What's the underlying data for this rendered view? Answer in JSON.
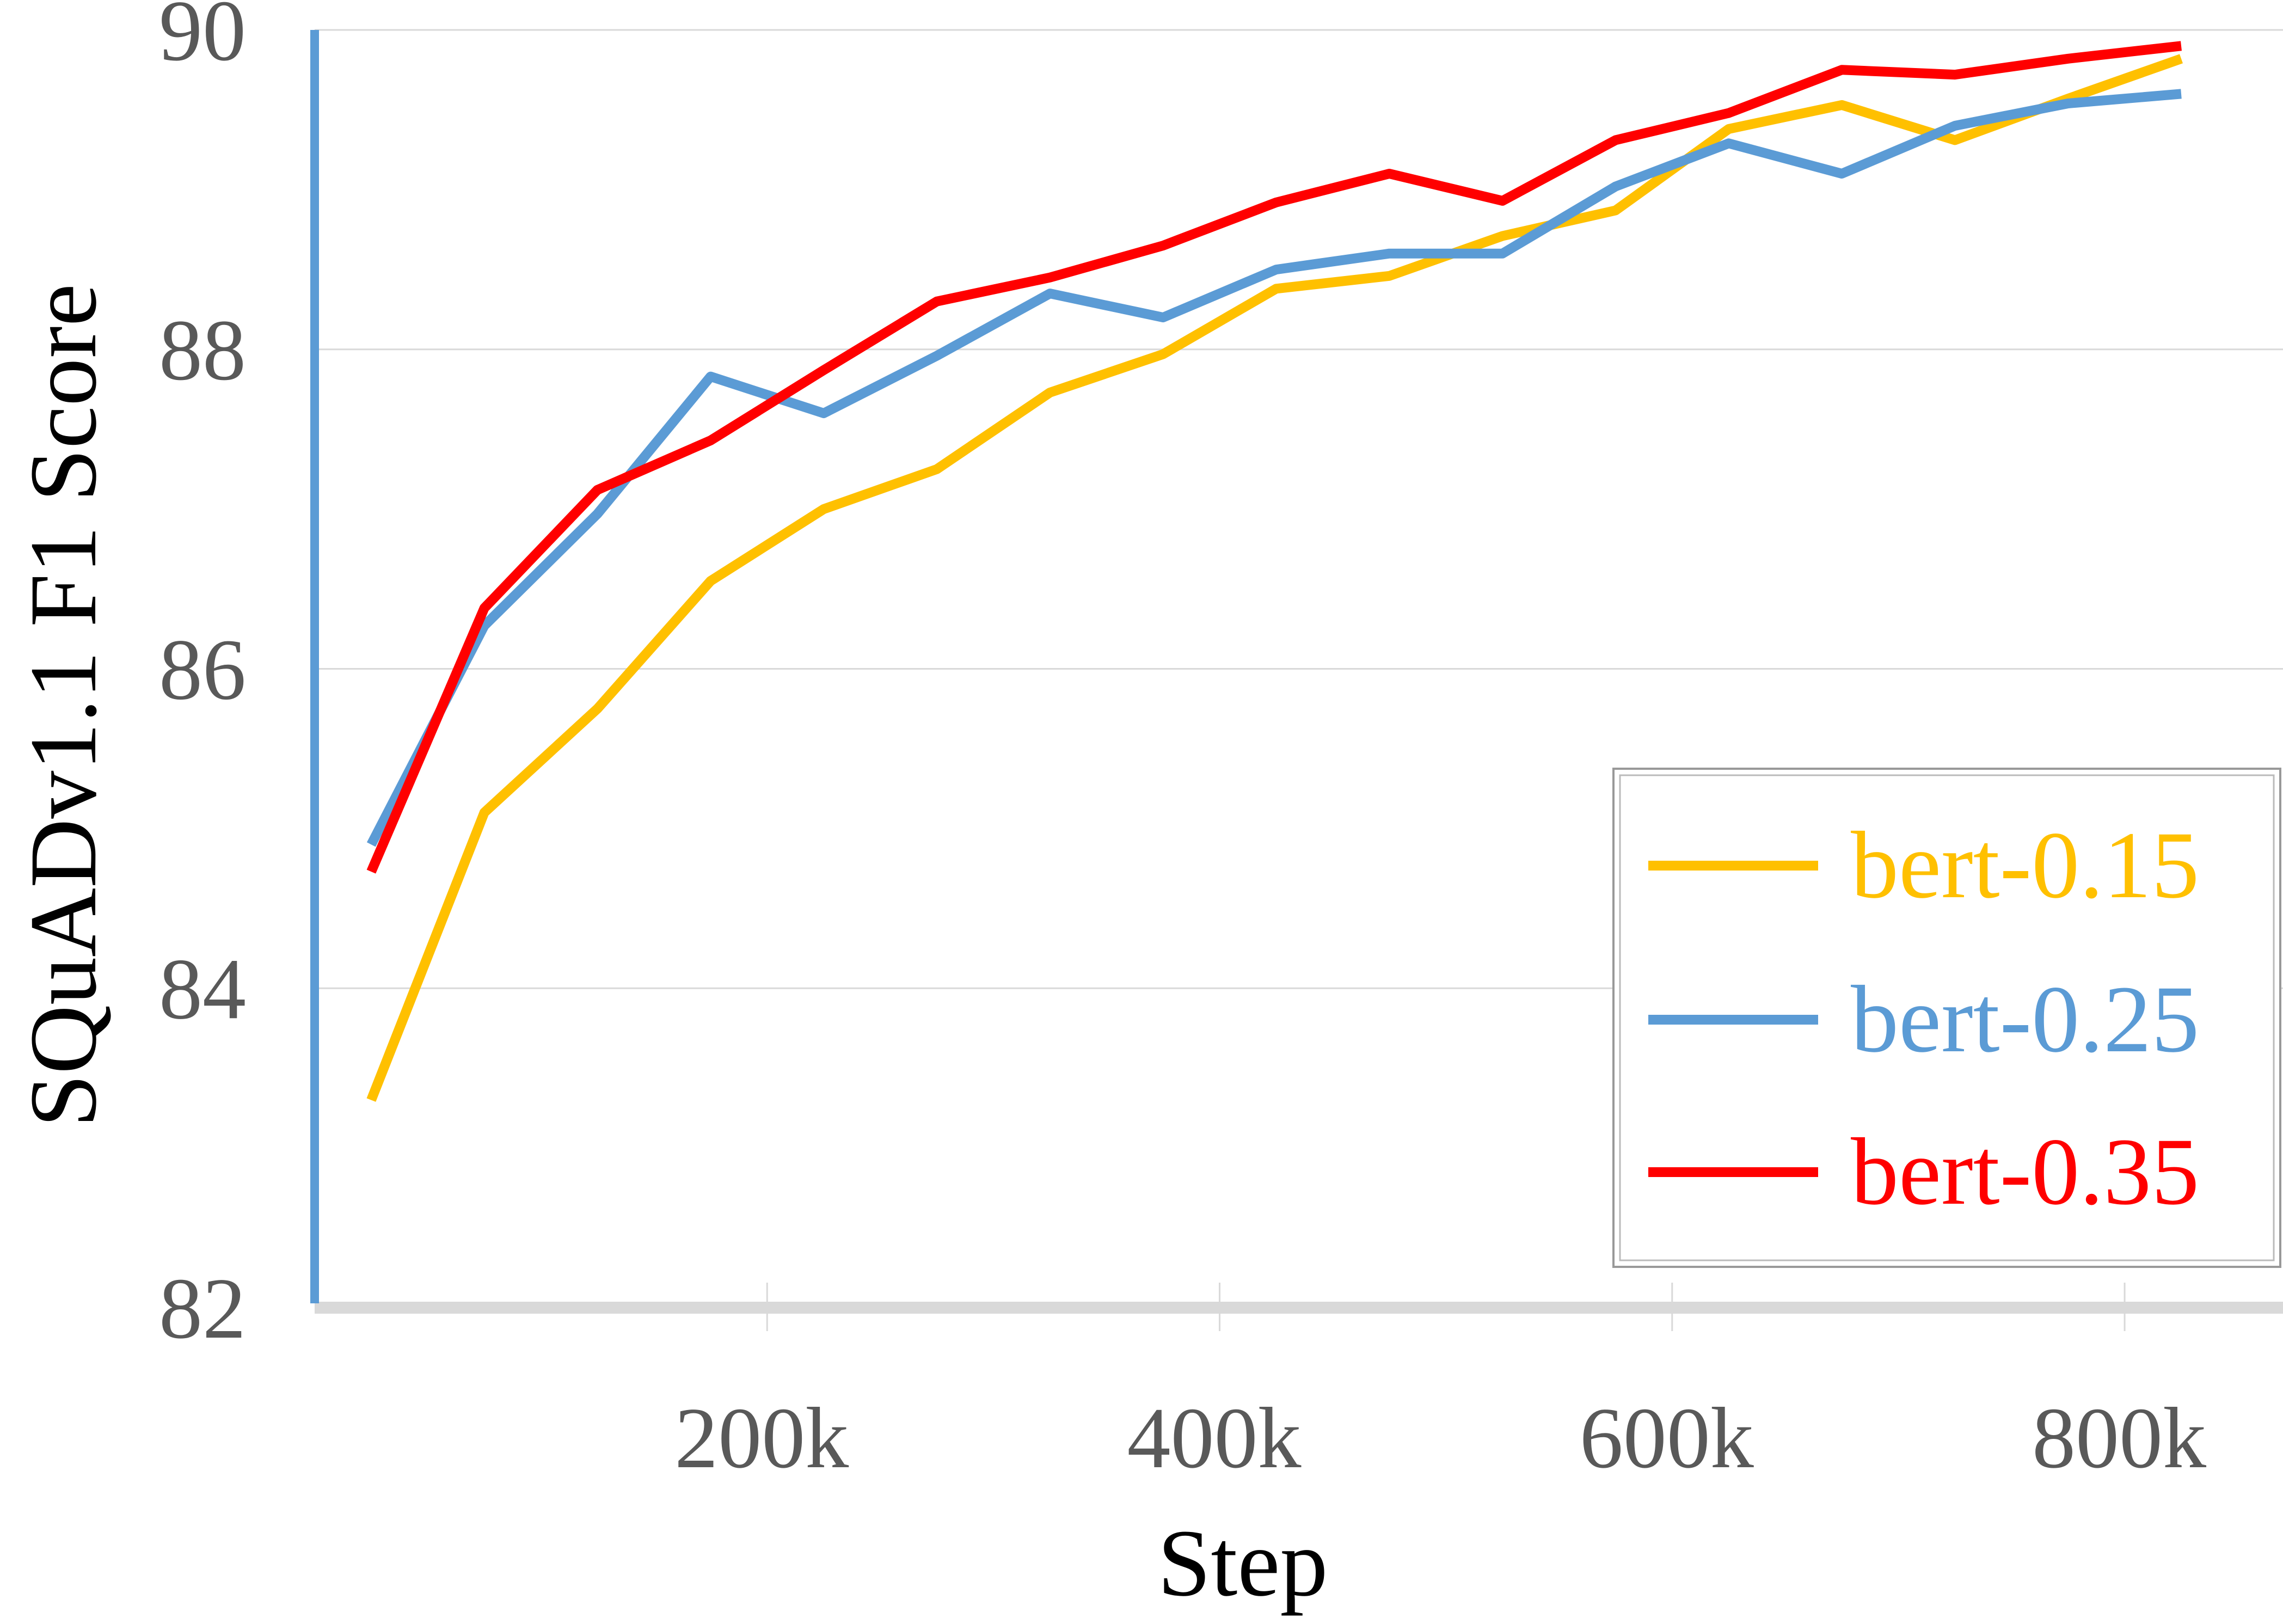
{
  "chart_data": {
    "type": "line",
    "title": "",
    "xlabel": "Step",
    "ylabel": "SQuADv1.1 F1 Score",
    "xlim": [
      0,
      870000
    ],
    "ylim": [
      82,
      90
    ],
    "x_ticks": [
      200000,
      400000,
      600000,
      800000
    ],
    "x_tick_labels": [
      "200k",
      "400k",
      "600k",
      "800k"
    ],
    "y_ticks": [
      82,
      84,
      86,
      88,
      90
    ],
    "y_tick_labels": [
      "82",
      "84",
      "86",
      "88",
      "90"
    ],
    "grid": "horizontal",
    "legend_position": "lower-right",
    "x": [
      25000,
      75000,
      125000,
      175000,
      225000,
      275000,
      325000,
      375000,
      425000,
      475000,
      525000,
      575000,
      625000,
      675000,
      725000,
      775000,
      825000
    ],
    "series": [
      {
        "name": "bert-0.15",
        "color": "#FFC000",
        "values": [
          83.3,
          85.1,
          85.75,
          86.55,
          87.0,
          87.25,
          87.73,
          87.97,
          88.38,
          88.46,
          88.71,
          88.87,
          89.38,
          89.53,
          89.31,
          89.57,
          89.82
        ]
      },
      {
        "name": "bert-0.25",
        "color": "#5B9BD5",
        "values": [
          84.9,
          86.27,
          86.97,
          87.83,
          87.6,
          87.96,
          88.35,
          88.2,
          88.5,
          88.6,
          88.6,
          89.02,
          89.29,
          89.1,
          89.4,
          89.54,
          89.6
        ]
      },
      {
        "name": "bert-0.35",
        "color": "#FF0000",
        "values": [
          84.73,
          86.38,
          87.12,
          87.43,
          87.87,
          88.3,
          88.45,
          88.65,
          88.92,
          89.1,
          88.93,
          89.31,
          89.48,
          89.75,
          89.72,
          89.82,
          89.9
        ]
      }
    ]
  }
}
